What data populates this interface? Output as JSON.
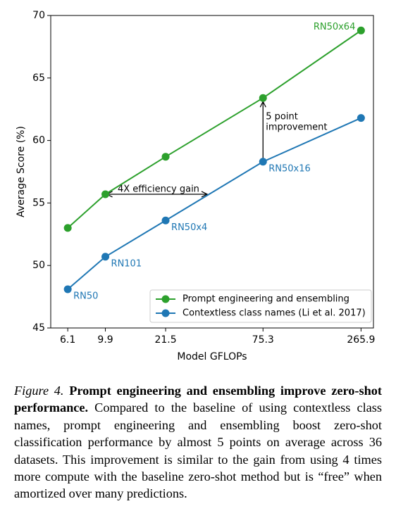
{
  "chart_data": {
    "type": "line",
    "xlabel": "Model GFLOPs",
    "ylabel": "Average Score (%)",
    "x": [
      6.1,
      9.9,
      21.5,
      75.3,
      265.9
    ],
    "xscale": "log",
    "xlim": [
      4.9,
      312
    ],
    "xticks": [
      6.1,
      9.9,
      21.5,
      75.3,
      265.9
    ],
    "ylim": [
      45,
      70
    ],
    "yticks": [
      45,
      50,
      55,
      60,
      65,
      70
    ],
    "legend": "lower right",
    "series": [
      {
        "name": "Prompt engineering and ensembling",
        "color": "#2ca02c",
        "values": [
          53.0,
          55.7,
          58.7,
          63.4,
          68.8
        ],
        "point_labels": [
          null,
          null,
          null,
          null,
          "RN50x64"
        ]
      },
      {
        "name": "Contextless class names (Li et al. 2017)",
        "color": "#1f77b4",
        "values": [
          48.1,
          50.7,
          53.6,
          58.3,
          61.8
        ],
        "point_labels": [
          "RN50",
          "RN101",
          "RN50x4",
          "RN50x16",
          null
        ]
      }
    ],
    "annotations": [
      [
        "4X efficiency gain"
      ],
      [
        "5 point",
        "improvement"
      ]
    ]
  },
  "caption": {
    "label": "Figure 4.",
    "heading": "Prompt engineering and ensembling improve zero-shot performance.",
    "text": "Compared to the baseline of using contextless class names, prompt engineering and ensembling boost zero-shot classification performance by almost 5 points on average across 36 datasets. This improvement is similar to the gain from using 4 times more compute with the baseline zero-shot method but is “free” when amortized over many predictions."
  }
}
